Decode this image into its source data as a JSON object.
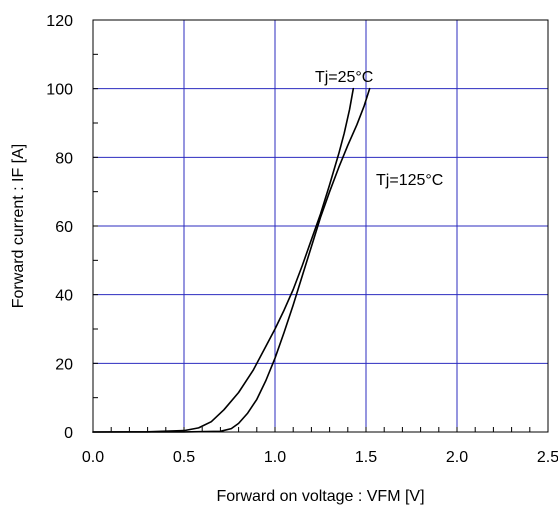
{
  "chart_data": {
    "type": "line",
    "title": "",
    "xlabel": "Forward on voltage : VFM [V]",
    "ylabel": "Forward current : IF [A]",
    "xlim": [
      0,
      2.5
    ],
    "ylim": [
      0,
      120
    ],
    "xticks": [
      0.0,
      0.5,
      1.0,
      1.5,
      2.0,
      2.5
    ],
    "xtick_labels": [
      "0.0",
      "0.5",
      "1.0",
      "1.5",
      "2.0",
      "2.5"
    ],
    "yticks": [
      0,
      20,
      40,
      60,
      80,
      100,
      120
    ],
    "ytick_labels": [
      "0",
      "20",
      "40",
      "60",
      "80",
      "100",
      "120"
    ],
    "grid": true,
    "colors": {
      "grid": "#2b2bbf",
      "line": "#000000",
      "axis": "#000000"
    },
    "annotations": [
      {
        "text": "Tj=25°C",
        "x": 1.38,
        "y": 102
      },
      {
        "text": "Tj=125°C",
        "x": 1.74,
        "y": 72
      }
    ],
    "series": [
      {
        "x": [
          0.0,
          0.3,
          0.5,
          0.58,
          0.65,
          0.72,
          0.8,
          0.88,
          0.95,
          1.0,
          1.05,
          1.1,
          1.15,
          1.2,
          1.25,
          1.3,
          1.35,
          1.38,
          1.41,
          1.43
        ],
        "y": [
          0,
          0.05,
          0.4,
          1.2,
          3,
          6.5,
          11.5,
          18,
          25,
          30,
          35.5,
          41.5,
          48.5,
          56,
          63.5,
          72,
          81,
          87,
          94,
          100
        ]
      },
      {
        "x": [
          0.0,
          0.5,
          0.7,
          0.76,
          0.8,
          0.85,
          0.9,
          0.95,
          1.0,
          1.05,
          1.1,
          1.15,
          1.2,
          1.25,
          1.3,
          1.35,
          1.4,
          1.45,
          1.49,
          1.52
        ],
        "y": [
          0,
          0.02,
          0.2,
          1,
          2.5,
          5.5,
          9.5,
          15,
          21.5,
          29,
          37,
          45.5,
          54,
          62.5,
          70,
          77,
          83.5,
          89.5,
          95,
          100
        ]
      }
    ]
  }
}
